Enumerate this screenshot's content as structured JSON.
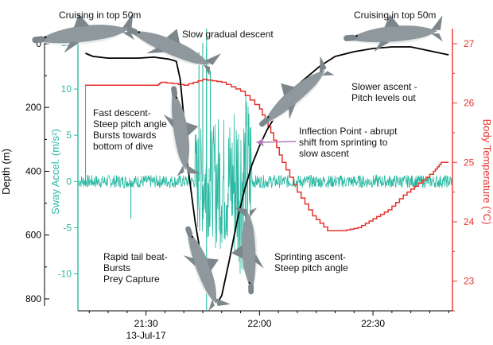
{
  "chart_data": {
    "type": "line",
    "x_axis": {
      "unit": "time of day",
      "range": [
        "21:12",
        "22:51"
      ],
      "ticks": [
        "21:30",
        "22:00",
        "22:30"
      ],
      "date_label": "13-Jul-17"
    },
    "depth_axis": {
      "title": "Depth (m)",
      "ylim": [
        0,
        820
      ],
      "inverted": true,
      "ticks": [
        0,
        200,
        400,
        600,
        800
      ]
    },
    "accel_axis": {
      "title": "Sway Accel. (m/s²)",
      "ylim": [
        -14,
        16.2
      ],
      "ticks": [
        15,
        10,
        5,
        0,
        -5,
        -10
      ],
      "color": "#2ab9a2"
    },
    "temp_axis": {
      "title": "Body Temperature (°C)",
      "ylim": [
        22.5,
        27.2
      ],
      "ticks": [
        27,
        26,
        25,
        24,
        23
      ],
      "color": "#e8332d"
    },
    "series": [
      {
        "id": "depth",
        "color": "#000000",
        "x": [
          "21:14",
          "21:16",
          "21:20",
          "21:24",
          "21:28",
          "21:32",
          "21:36",
          "21:38",
          "21:39",
          "21:40",
          "21:41",
          "21:43",
          "21:45",
          "21:47",
          "21:48",
          "21:49",
          "21:50",
          "21:52",
          "21:54",
          "21:56",
          "21:58",
          "22:00",
          "22:02",
          "22:05",
          "22:08",
          "22:12",
          "22:16",
          "22:20",
          "22:25",
          "22:30",
          "22:35",
          "22:40",
          "22:44",
          "22:48",
          "22:50"
        ],
        "values": [
          30,
          40,
          45,
          45,
          45,
          42,
          48,
          55,
          110,
          230,
          380,
          560,
          700,
          770,
          800,
          810,
          790,
          680,
          560,
          460,
          380,
          320,
          270,
          210,
          150,
          110,
          70,
          40,
          25,
          15,
          10,
          10,
          20,
          30,
          35
        ]
      },
      {
        "id": "body-temperature",
        "color": "#e8332d",
        "x": [
          "21:14",
          "21:33",
          "21:34",
          "21:40",
          "21:45",
          "21:50",
          "21:55",
          "22:00",
          "22:03",
          "22:06",
          "22:10",
          "22:14",
          "22:18",
          "22:22",
          "22:26",
          "22:30",
          "22:34",
          "22:38",
          "22:42",
          "22:46",
          "22:48",
          "22:50"
        ],
        "values": [
          26.3,
          26.3,
          26.35,
          26.3,
          26.4,
          26.35,
          26.2,
          25.9,
          25.5,
          25.0,
          24.5,
          24.1,
          23.85,
          23.85,
          23.9,
          24.05,
          24.2,
          24.45,
          24.65,
          24.85,
          25.0,
          25.0
        ]
      },
      {
        "id": "sway-acceleration",
        "color": "#2ab9a2",
        "baseline": 0,
        "bursts": [
          {
            "start": "21:43",
            "end": "21:48",
            "amplitude": 6
          },
          {
            "start": "21:48",
            "end": "21:53",
            "amplitude": 7.5
          },
          {
            "start": "21:53",
            "end": "21:58",
            "amplitude": 10
          }
        ],
        "spikes": [
          {
            "x": "21:14",
            "value": 10.5
          },
          {
            "x": "21:26",
            "value": -4
          },
          {
            "x": "21:44",
            "value": 14
          },
          {
            "x": "21:45",
            "value": 15
          },
          {
            "x": "21:46",
            "value": 14.5
          },
          {
            "x": "21:47",
            "value": 12
          }
        ]
      }
    ],
    "annotations": [
      "Cruising in top 50m",
      "Slow gradual descent",
      "Cruising in top 50m",
      "Slower ascent - Pitch levels out",
      "Fast descent- Steep pitch angle Bursts towards bottom of dive",
      "Inflection Point - abrupt shift from sprinting to slow ascent",
      "Rapid tail beat- Bursts Prey Capture",
      "Sprinting ascent- Steep pitch angle"
    ]
  },
  "labels": {
    "cruising_left": "Cruising in top 50m",
    "slow_descent": "Slow gradual descent",
    "cruising_right": "Cruising in top 50m",
    "slower_ascent_1": "Slower ascent -",
    "slower_ascent_2": "Pitch levels out",
    "fast_descent_1": "Fast descent-",
    "fast_descent_2": "Steep pitch angle",
    "fast_descent_3": "Bursts towards",
    "fast_descent_4": "bottom of dive",
    "inflection_1": "Inflection Point - abrupt",
    "inflection_2": "shift from sprinting to",
    "inflection_3": "slow ascent",
    "rapid_1": "Rapid tail beat-",
    "rapid_2": "Bursts",
    "rapid_3": "Prey Capture",
    "sprint_1": "Sprinting ascent-",
    "sprint_2": "Steep pitch angle"
  },
  "colors": {
    "depth": "#000000",
    "acceleration": "#2ab9a2",
    "temperature": "#e8332d",
    "arrow": "#b07ab8",
    "shark_body": "#8f989c",
    "shark_belly": "#e8ecec"
  }
}
